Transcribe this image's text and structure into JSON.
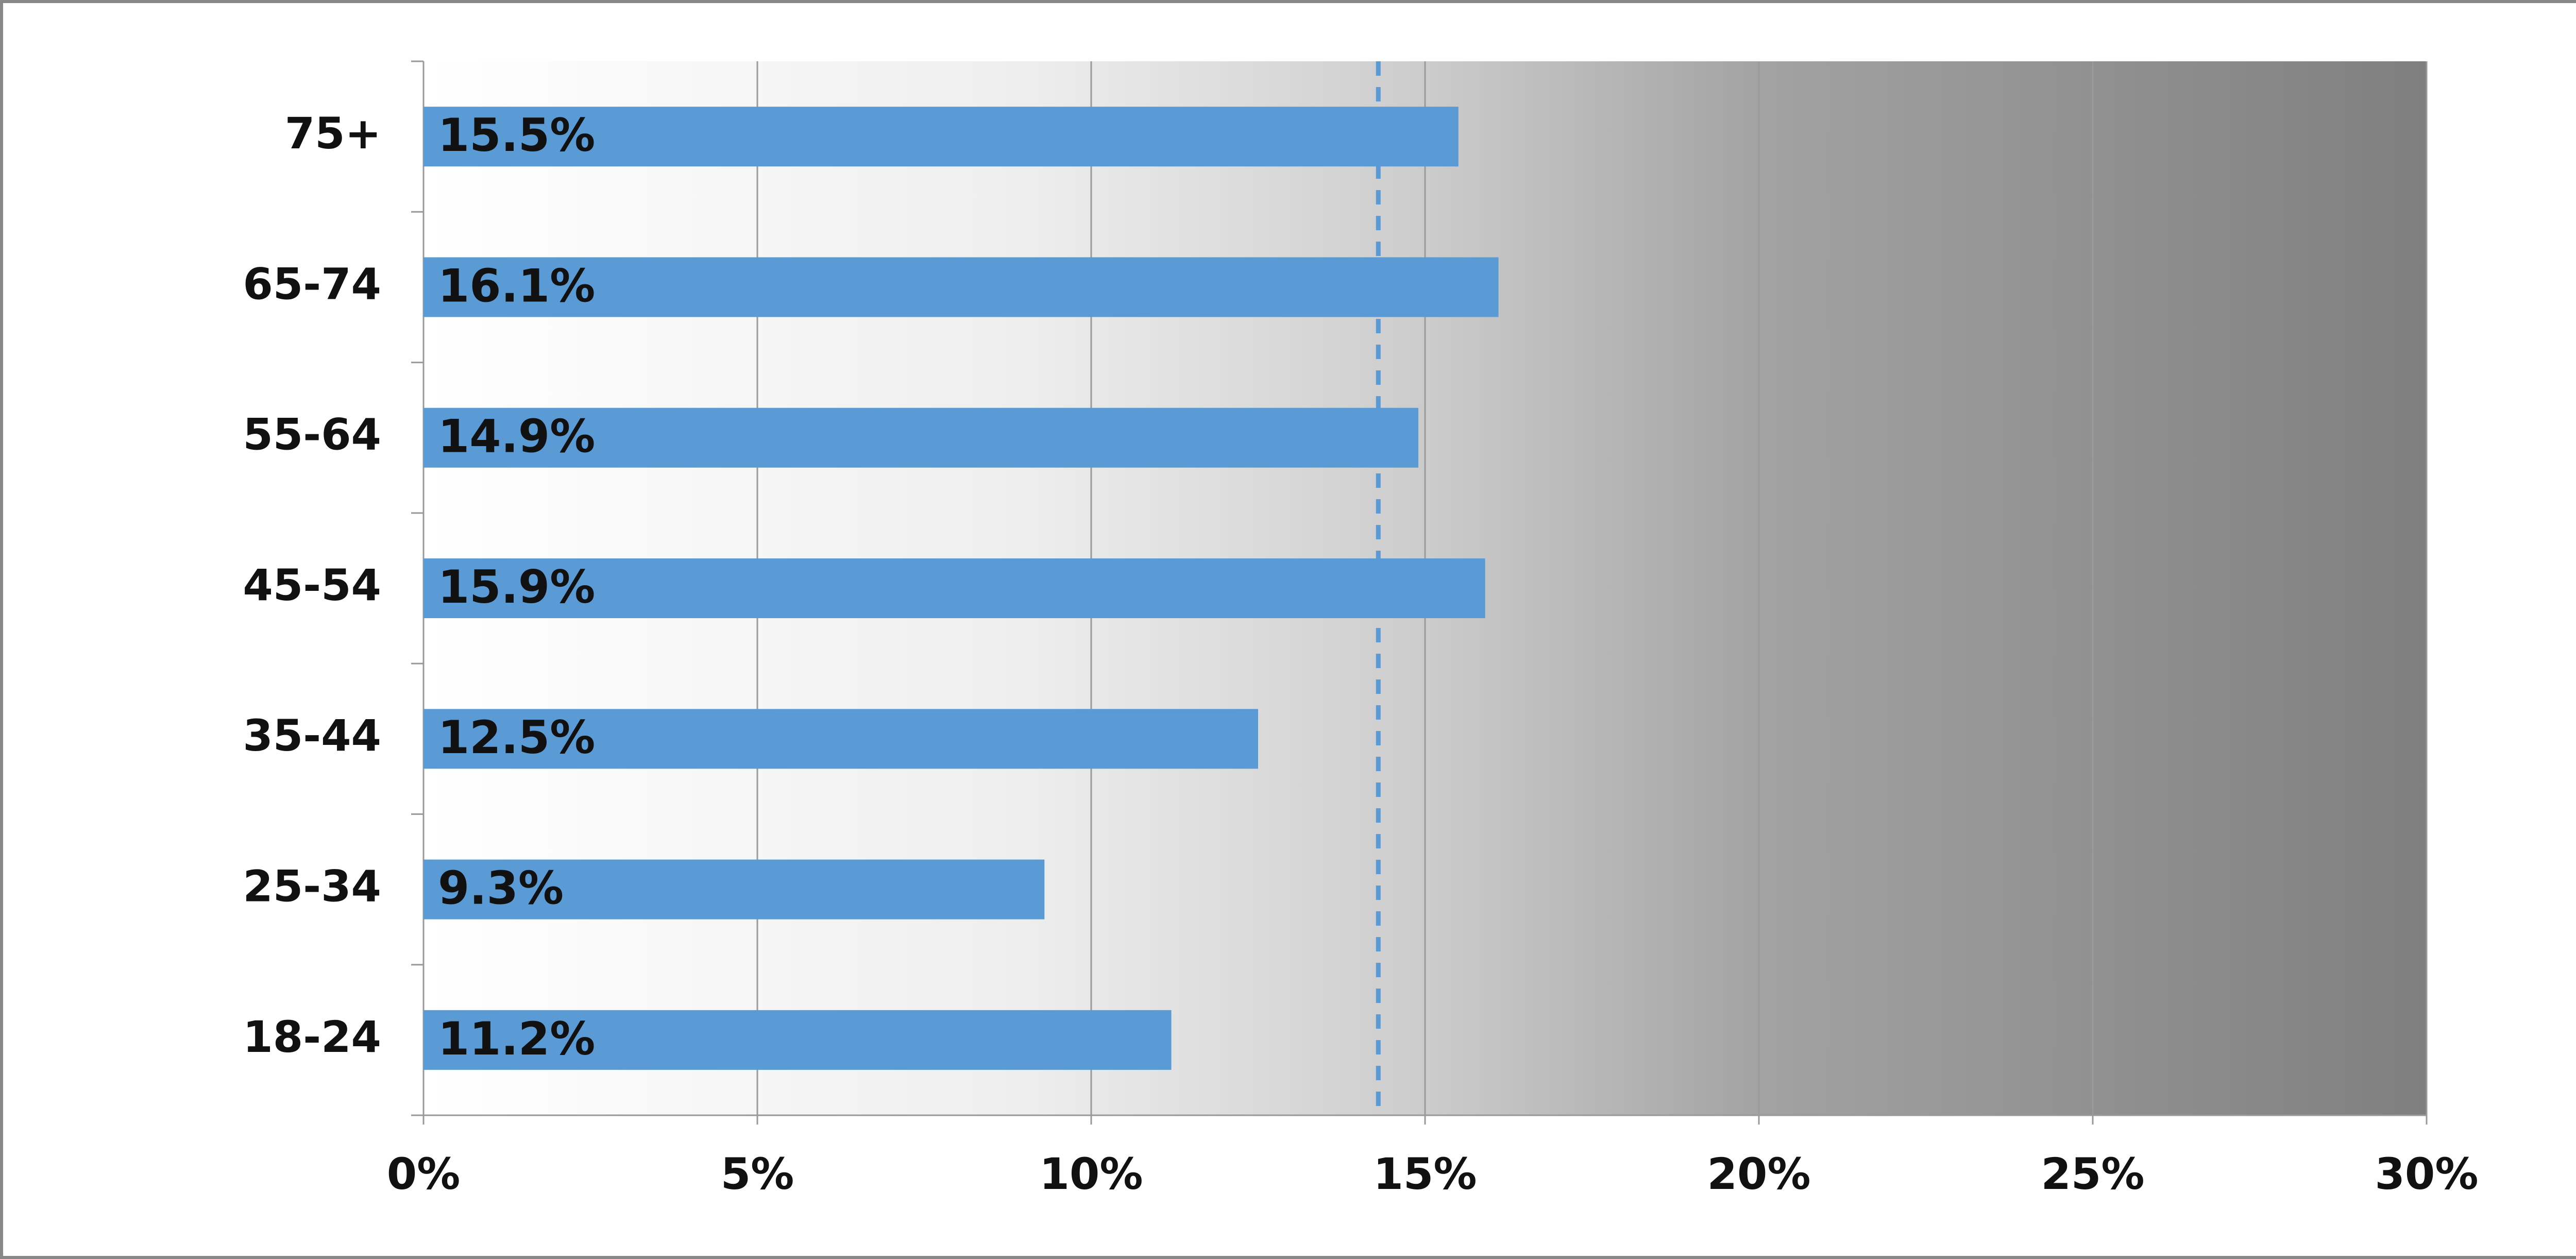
{
  "chart_data": {
    "type": "bar",
    "orientation": "horizontal",
    "categories": [
      "18-24",
      "25-34",
      "35-44",
      "45-54",
      "55-64",
      "65-74",
      "75+"
    ],
    "values": [
      11.2,
      9.3,
      12.5,
      15.9,
      14.9,
      16.1,
      15.5
    ],
    "value_labels": [
      "11.2%",
      "9.3%",
      "12.5%",
      "15.9%",
      "14.9%",
      "16.1%",
      "15.5%"
    ],
    "color": "#5b9bd5",
    "xlim": [
      0,
      30
    ],
    "xticks": [
      {
        "value": 0,
        "label": "0%"
      },
      {
        "value": 5,
        "label": "5%"
      },
      {
        "value": 10,
        "label": "10%"
      },
      {
        "value": 15,
        "label": "15%"
      },
      {
        "value": 20,
        "label": "20%"
      },
      {
        "value": 25,
        "label": "25%"
      },
      {
        "value": 30,
        "label": "30%"
      }
    ],
    "grid": true,
    "reference_line": 14.3
  }
}
